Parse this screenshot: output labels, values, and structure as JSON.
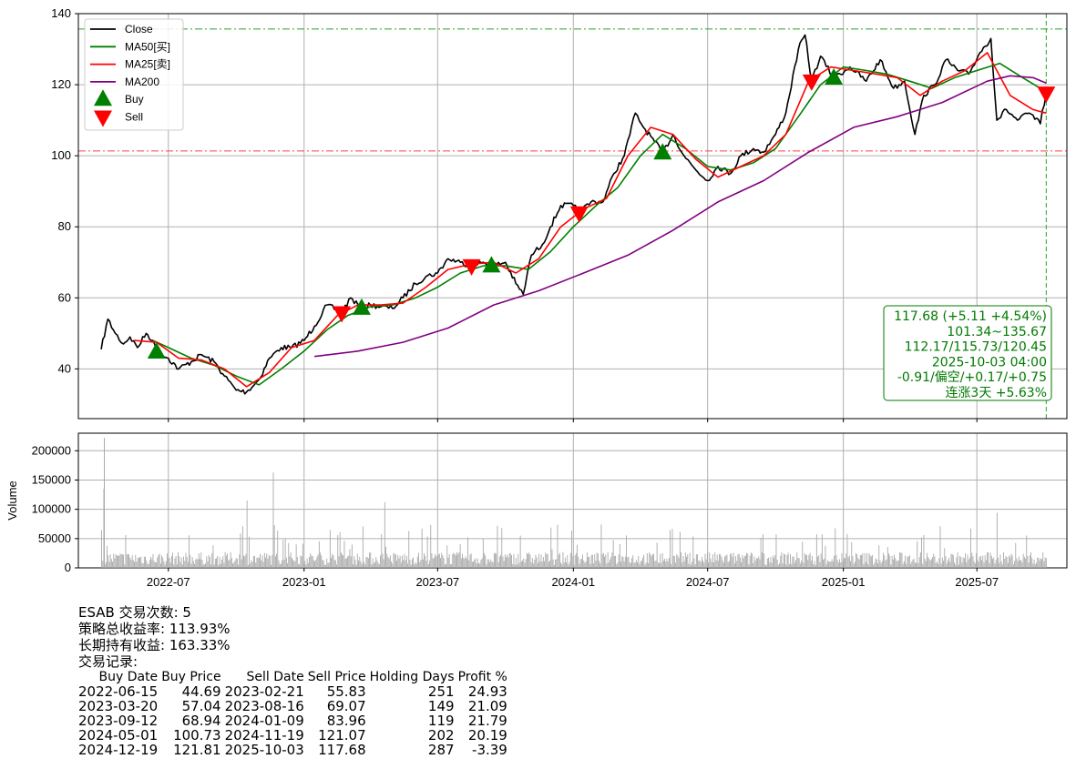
{
  "chart_data": [
    {
      "type": "line",
      "ylim": [
        26,
        140
      ],
      "y_ticks": [
        40,
        60,
        80,
        100,
        120,
        140
      ],
      "x_ticks": [
        "2022-07",
        "2023-01",
        "2023-07",
        "2024-01",
        "2024-07",
        "2025-01",
        "2025-07"
      ],
      "grid": true,
      "legend_placement": "top-left",
      "reference_lines": {
        "high_dashdot": 135.67,
        "low_dashdot": 101.34,
        "vertical_date": "2025-10-03"
      },
      "series": [
        {
          "name": "Close",
          "color": "#000000",
          "points": [
            [
              "2022-04-01",
              45.5
            ],
            [
              "2022-04-10",
              54
            ],
            [
              "2022-04-20",
              50
            ],
            [
              "2022-05-01",
              47
            ],
            [
              "2022-05-10",
              49
            ],
            [
              "2022-05-20",
              46
            ],
            [
              "2022-06-01",
              50
            ],
            [
              "2022-06-10",
              48
            ],
            [
              "2022-06-15",
              44.69
            ],
            [
              "2022-07-01",
              43
            ],
            [
              "2022-07-15",
              40
            ],
            [
              "2022-08-01",
              42
            ],
            [
              "2022-08-15",
              44
            ],
            [
              "2022-09-01",
              42
            ],
            [
              "2022-09-15",
              38
            ],
            [
              "2022-10-01",
              34
            ],
            [
              "2022-10-15",
              33.5
            ],
            [
              "2022-11-01",
              37
            ],
            [
              "2022-11-15",
              43
            ],
            [
              "2022-12-01",
              46
            ],
            [
              "2022-12-15",
              46
            ],
            [
              "2023-01-01",
              48
            ],
            [
              "2023-01-15",
              52
            ],
            [
              "2023-02-01",
              58
            ],
            [
              "2023-02-21",
              55.83
            ],
            [
              "2023-03-05",
              60
            ],
            [
              "2023-03-20",
              57.04
            ],
            [
              "2023-04-01",
              58
            ],
            [
              "2023-04-15",
              57.5
            ],
            [
              "2023-05-01",
              57
            ],
            [
              "2023-05-15",
              60
            ],
            [
              "2023-06-01",
              64
            ],
            [
              "2023-06-15",
              66
            ],
            [
              "2023-07-01",
              67
            ],
            [
              "2023-07-15",
              71
            ],
            [
              "2023-08-01",
              70
            ],
            [
              "2023-08-16",
              69.07
            ],
            [
              "2023-09-01",
              70
            ],
            [
              "2023-09-12",
              68.94
            ],
            [
              "2023-10-01",
              70
            ],
            [
              "2023-10-15",
              64
            ],
            [
              "2023-10-25",
              61
            ],
            [
              "2023-11-05",
              72
            ],
            [
              "2023-11-20",
              75
            ],
            [
              "2023-12-01",
              80
            ],
            [
              "2023-12-15",
              86
            ],
            [
              "2024-01-01",
              86
            ],
            [
              "2024-01-09",
              83.96
            ],
            [
              "2024-01-25",
              87
            ],
            [
              "2024-02-10",
              87
            ],
            [
              "2024-02-25",
              95
            ],
            [
              "2024-03-10",
              100
            ],
            [
              "2024-03-25",
              112
            ],
            [
              "2024-04-05",
              108
            ],
            [
              "2024-04-20",
              104
            ],
            [
              "2024-05-01",
              100.73
            ],
            [
              "2024-05-15",
              106
            ],
            [
              "2024-05-30",
              100
            ],
            [
              "2024-06-15",
              96
            ],
            [
              "2024-07-01",
              93
            ],
            [
              "2024-07-15",
              97
            ],
            [
              "2024-08-01",
              95
            ],
            [
              "2024-08-15",
              100
            ],
            [
              "2024-09-01",
              102
            ],
            [
              "2024-09-15",
              101
            ],
            [
              "2024-10-01",
              106
            ],
            [
              "2024-10-15",
              112
            ],
            [
              "2024-11-01",
              130
            ],
            [
              "2024-11-10",
              134
            ],
            [
              "2024-11-19",
              121.07
            ],
            [
              "2024-12-01",
              128
            ],
            [
              "2024-12-19",
              121.81
            ],
            [
              "2025-01-10",
              125
            ],
            [
              "2025-02-01",
              121
            ],
            [
              "2025-02-20",
              127
            ],
            [
              "2025-03-10",
              119
            ],
            [
              "2025-03-25",
              121
            ],
            [
              "2025-04-08",
              106
            ],
            [
              "2025-04-20",
              117
            ],
            [
              "2025-05-05",
              120
            ],
            [
              "2025-05-20",
              127
            ],
            [
              "2025-06-05",
              124
            ],
            [
              "2025-06-20",
              123
            ],
            [
              "2025-07-05",
              129
            ],
            [
              "2025-07-20",
              133
            ],
            [
              "2025-07-28",
              110
            ],
            [
              "2025-08-10",
              113
            ],
            [
              "2025-08-25",
              110
            ],
            [
              "2025-09-10",
              112
            ],
            [
              "2025-09-25",
              109
            ],
            [
              "2025-10-03",
              117.68
            ]
          ]
        },
        {
          "name": "MA50[买]",
          "color": "#007f00",
          "points": [
            [
              "2022-06-10",
              48
            ],
            [
              "2022-07-01",
              46
            ],
            [
              "2022-08-01",
              43
            ],
            [
              "2022-09-01",
              41
            ],
            [
              "2022-10-01",
              38
            ],
            [
              "2022-11-01",
              35.5
            ],
            [
              "2022-12-01",
              40
            ],
            [
              "2023-01-01",
              45
            ],
            [
              "2023-02-01",
              51
            ],
            [
              "2023-03-01",
              55
            ],
            [
              "2023-04-01",
              57.5
            ],
            [
              "2023-05-01",
              58
            ],
            [
              "2023-06-01",
              60
            ],
            [
              "2023-07-01",
              63
            ],
            [
              "2023-08-01",
              67
            ],
            [
              "2023-09-01",
              69
            ],
            [
              "2023-10-01",
              69
            ],
            [
              "2023-11-01",
              68
            ],
            [
              "2023-12-01",
              73
            ],
            [
              "2024-01-01",
              80
            ],
            [
              "2024-02-01",
              86
            ],
            [
              "2024-03-01",
              91
            ],
            [
              "2024-04-01",
              100
            ],
            [
              "2024-05-01",
              106
            ],
            [
              "2024-06-01",
              102
            ],
            [
              "2024-07-01",
              97
            ],
            [
              "2024-08-01",
              96
            ],
            [
              "2024-09-01",
              98
            ],
            [
              "2024-10-01",
              102
            ],
            [
              "2024-11-01",
              111
            ],
            [
              "2024-12-01",
              120
            ],
            [
              "2025-01-01",
              125
            ],
            [
              "2025-02-01",
              124
            ],
            [
              "2025-03-01",
              123
            ],
            [
              "2025-04-01",
              121
            ],
            [
              "2025-05-01",
              119
            ],
            [
              "2025-06-01",
              122
            ],
            [
              "2025-07-01",
              124
            ],
            [
              "2025-08-01",
              126
            ],
            [
              "2025-09-01",
              122
            ],
            [
              "2025-10-03",
              118
            ]
          ]
        },
        {
          "name": "MA25[卖]",
          "color": "#ff0000",
          "points": [
            [
              "2022-05-15",
              48
            ],
            [
              "2022-06-15",
              47.5
            ],
            [
              "2022-07-15",
              43
            ],
            [
              "2022-08-15",
              42.5
            ],
            [
              "2022-09-15",
              40
            ],
            [
              "2022-10-15",
              35
            ],
            [
              "2022-11-15",
              39
            ],
            [
              "2022-12-15",
              46
            ],
            [
              "2023-01-15",
              48
            ],
            [
              "2023-02-15",
              55
            ],
            [
              "2023-03-15",
              58
            ],
            [
              "2023-04-15",
              58
            ],
            [
              "2023-05-15",
              58.5
            ],
            [
              "2023-06-15",
              63
            ],
            [
              "2023-07-15",
              68
            ],
            [
              "2023-08-15",
              69.5
            ],
            [
              "2023-09-15",
              70
            ],
            [
              "2023-10-15",
              67
            ],
            [
              "2023-11-15",
              71
            ],
            [
              "2023-12-15",
              80
            ],
            [
              "2024-01-15",
              85
            ],
            [
              "2024-02-15",
              88
            ],
            [
              "2024-03-15",
              100
            ],
            [
              "2024-04-15",
              108
            ],
            [
              "2024-05-15",
              106
            ],
            [
              "2024-06-15",
              99
            ],
            [
              "2024-07-15",
              94
            ],
            [
              "2024-08-15",
              97
            ],
            [
              "2024-09-15",
              100
            ],
            [
              "2024-10-15",
              106
            ],
            [
              "2024-11-15",
              121
            ],
            [
              "2024-12-15",
              125
            ],
            [
              "2025-01-15",
              124
            ],
            [
              "2025-02-15",
              123
            ],
            [
              "2025-03-15",
              122
            ],
            [
              "2025-04-15",
              117
            ],
            [
              "2025-05-15",
              121
            ],
            [
              "2025-06-15",
              124
            ],
            [
              "2025-07-15",
              129
            ],
            [
              "2025-08-15",
              117
            ],
            [
              "2025-09-15",
              113
            ],
            [
              "2025-10-03",
              112
            ]
          ]
        },
        {
          "name": "MA200",
          "color": "#800080",
          "points": [
            [
              "2023-01-15",
              43.5
            ],
            [
              "2023-03-15",
              45
            ],
            [
              "2023-05-15",
              47.5
            ],
            [
              "2023-07-15",
              51.5
            ],
            [
              "2023-09-15",
              58
            ],
            [
              "2023-11-15",
              62
            ],
            [
              "2024-01-15",
              67
            ],
            [
              "2024-03-15",
              72
            ],
            [
              "2024-05-15",
              79
            ],
            [
              "2024-07-15",
              87
            ],
            [
              "2024-09-15",
              93
            ],
            [
              "2024-11-15",
              101
            ],
            [
              "2025-01-15",
              108
            ],
            [
              "2025-03-15",
              111
            ],
            [
              "2025-05-15",
              115
            ],
            [
              "2025-07-15",
              121
            ],
            [
              "2025-08-15",
              122.5
            ],
            [
              "2025-09-15",
              122
            ],
            [
              "2025-10-03",
              120.45
            ]
          ]
        }
      ],
      "buy_signals": [
        {
          "date": "2022-06-15",
          "price": 44.69
        },
        {
          "date": "2023-03-20",
          "price": 57.04
        },
        {
          "date": "2023-09-12",
          "price": 68.94
        },
        {
          "date": "2024-05-01",
          "price": 100.73
        },
        {
          "date": "2024-12-19",
          "price": 121.81
        }
      ],
      "sell_signals": [
        {
          "date": "2023-02-21",
          "price": 55.83
        },
        {
          "date": "2023-08-16",
          "price": 69.07
        },
        {
          "date": "2024-01-09",
          "price": 83.96
        },
        {
          "date": "2024-11-19",
          "price": 121.07
        },
        {
          "date": "2025-10-03",
          "price": 117.68
        }
      ],
      "legend": [
        "Close",
        "MA50[买]",
        "MA25[卖]",
        "MA200",
        "Buy",
        "Sell"
      ]
    },
    {
      "type": "bar",
      "ylabel": "Volume",
      "ylim": [
        0,
        230000
      ],
      "y_ticks": [
        0,
        50000,
        100000,
        150000,
        200000
      ],
      "grid": true,
      "color": "#aaaaaa",
      "notable_bars": [
        {
          "date": "2022-04-03",
          "value": 135000
        },
        {
          "date": "2022-04-04",
          "value": 222000
        },
        {
          "date": "2022-10-15",
          "value": 115000
        },
        {
          "date": "2022-11-20",
          "value": 163000
        },
        {
          "date": "2023-04-20",
          "value": 112000
        },
        {
          "date": "2023-09-20",
          "value": 72000
        },
        {
          "date": "2025-07-28",
          "value": 94000
        }
      ]
    }
  ],
  "info_box": {
    "lines": [
      "117.68 (+5.11 +4.54%)",
      "101.34~135.67",
      "112.17/115.73/120.45",
      "2025-10-03 04:00",
      "-0.91/偏空/+0.17/+0.75",
      "连涨3天 +5.63%"
    ]
  },
  "summary": {
    "title": "ESAB 交易次数: 5",
    "total_return": "策略总收益率: 113.93%",
    "hold_return": "长期持有收益: 163.33%",
    "records_label": "交易记录:",
    "columns": [
      "Buy Date",
      "Buy Price",
      "Sell Date",
      "Sell Price",
      "Holding Days",
      "Profit %"
    ],
    "rows": [
      [
        "2022-06-15",
        "44.69",
        "2023-02-21",
        "55.83",
        "251",
        "24.93"
      ],
      [
        "2023-03-20",
        "57.04",
        "2023-08-16",
        "69.07",
        "149",
        "21.09"
      ],
      [
        "2023-09-12",
        "68.94",
        "2024-01-09",
        "83.96",
        "119",
        "21.79"
      ],
      [
        "2024-05-01",
        "100.73",
        "2024-11-19",
        "121.07",
        "202",
        "20.19"
      ],
      [
        "2024-12-19",
        "121.81",
        "2025-10-03",
        "117.68",
        "287",
        "-3.39"
      ]
    ]
  }
}
